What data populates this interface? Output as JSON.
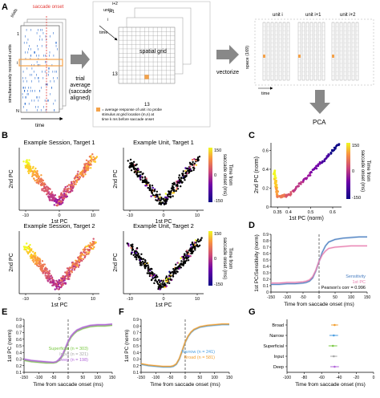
{
  "panels": {
    "A": {
      "letter": "A",
      "saccade_onset": "saccade\nonset",
      "trials_label": "trials",
      "units_label": "simultaneously recorded units",
      "time_label": "time",
      "unit_1": "1",
      "unit_i": "i",
      "unit_n": "N",
      "trial_average": "trial\naverage\n(saccade\naligned)",
      "units_stack": "units",
      "stack_i": "i",
      "stack_i1": "i+1",
      "stack_i2": "i+2",
      "stack_time": "time",
      "spatial_grid": "spatial grid",
      "grid_13_y": "13",
      "grid_13_x": "13",
      "legend_text": "= average response of unit i to probe\nstimulus at grid location (m,n) at\ntime k ms before saccade onset",
      "vectorize": "vectorize",
      "unit_col_i": "unit i",
      "unit_col_i1": "unit i+1",
      "unit_col_i2": "unit i+2",
      "space_label": "space (169)",
      "time_small": "time",
      "pca": "PCA"
    },
    "B": {
      "letter": "B",
      "titles": [
        "Example Session, Target 1",
        "Example Unit, Target 1",
        "Example Session, Target 2",
        "Example Unit, Target 2"
      ],
      "xlabel": "1st PC",
      "ylabel": "2nd PC",
      "x_ticks": [
        "-10",
        "0",
        "10"
      ],
      "colorbar_label": "Time from\nsaccade onset (ms)",
      "cb_top": "150",
      "cb_mid": "0",
      "cb_bot": "-150"
    },
    "C": {
      "letter": "C",
      "xlabel": "1st PC (norm)",
      "ylabel": "2nd PC (norm)",
      "x_ticks": [
        "0.35",
        "0.4",
        "0.5",
        "0.6"
      ],
      "y_ticks": [
        "0",
        "0.2",
        "0.4",
        "0.6"
      ],
      "colorbar_label": "Time from\nsaccade onset (ms)",
      "cb_top": "150",
      "cb_mid": "0",
      "cb_bot": "-150"
    },
    "D": {
      "letter": "D",
      "ylabel": "1st PC/Sensitivity (norm)",
      "xlabel": "Time from saccade onset (ms)",
      "x_ticks": [
        "-150",
        "-100",
        "-50",
        "0",
        "50",
        "100",
        "150"
      ],
      "y_ticks": [
        "0",
        "0.1",
        "0.2",
        "0.3",
        "0.4",
        "0.5",
        "0.6",
        "0.7",
        "0.8",
        "0.9"
      ],
      "legend": [
        "Sensitivity",
        "1st PC",
        "Pearson's corr = 0.996"
      ]
    },
    "E": {
      "letter": "E",
      "ylabel": "1st PC (norm)",
      "xlabel": "Time from saccade onset (ms)",
      "x_ticks": [
        "-150",
        "-100",
        "-50",
        "0",
        "50",
        "100",
        "150"
      ],
      "y_ticks": [
        "0.1",
        "0.2",
        "0.3",
        "0.4",
        "0.5",
        "0.6",
        "0.7",
        "0.8",
        "0.9"
      ],
      "legend": [
        "Superficial (n = 303)",
        "Input (n = 321)",
        "Deep (n = 198)"
      ]
    },
    "F": {
      "letter": "F",
      "ylabel": "1st PC (norm)",
      "xlabel": "Time from saccade onset (ms)",
      "x_ticks": [
        "-150",
        "-100",
        "-50",
        "0",
        "50",
        "100",
        "150"
      ],
      "y_ticks": [
        "0.1",
        "0.2",
        "0.3",
        "0.4",
        "0.5",
        "0.6",
        "0.7",
        "0.8",
        "0.9"
      ],
      "legend": [
        "Narrow (n = 241)",
        "Broad (n = 581)"
      ]
    },
    "G": {
      "letter": "G",
      "xlabel": "Time from saccade onset (ms)",
      "x_ticks": [
        "-100",
        "-80",
        "-60",
        "-40",
        "-20",
        "0"
      ],
      "categories": [
        "Broad",
        "Narrow",
        "Superficial",
        "Input",
        "Deep"
      ]
    }
  },
  "colors": {
    "orange_highlight": "#f4a24a",
    "sensitivity": "#4a7fc1",
    "first_pc": "#e87fb0",
    "superficial": "#7ac943",
    "input": "#a6a6a6",
    "deep": "#b266d9",
    "narrow": "#4a9ee0",
    "broad": "#f29e2e"
  },
  "chart_data": [
    {
      "type": "line",
      "panel": "D",
      "x": [
        -150,
        -125,
        -100,
        -75,
        -50,
        -40,
        -30,
        -20,
        -10,
        0,
        10,
        20,
        30,
        50,
        75,
        100,
        125,
        150
      ],
      "series": [
        {
          "name": "Sensitivity",
          "values": [
            0.12,
            0.12,
            0.13,
            0.13,
            0.14,
            0.15,
            0.17,
            0.22,
            0.33,
            0.48,
            0.62,
            0.72,
            0.78,
            0.82,
            0.84,
            0.85,
            0.86,
            0.86
          ]
        },
        {
          "name": "1st PC",
          "values": [
            0.14,
            0.14,
            0.15,
            0.15,
            0.16,
            0.17,
            0.19,
            0.24,
            0.34,
            0.48,
            0.58,
            0.64,
            0.68,
            0.7,
            0.71,
            0.72,
            0.72,
            0.72
          ]
        }
      ],
      "xlabel": "Time from saccade onset (ms)",
      "ylabel": "1st PC/Sensitivity (norm)",
      "xlim": [
        -150,
        150
      ],
      "ylim": [
        0,
        0.9
      ]
    },
    {
      "type": "line",
      "panel": "E",
      "x": [
        -150,
        -125,
        -100,
        -75,
        -50,
        -40,
        -30,
        -20,
        -10,
        0,
        10,
        20,
        30,
        50,
        75,
        100,
        125,
        150
      ],
      "series": [
        {
          "name": "Superficial (n = 303)",
          "values": [
            0.28,
            0.26,
            0.25,
            0.24,
            0.24,
            0.25,
            0.28,
            0.34,
            0.44,
            0.55,
            0.63,
            0.68,
            0.72,
            0.76,
            0.79,
            0.8,
            0.8,
            0.81
          ]
        },
        {
          "name": "Input (n = 321)",
          "values": [
            0.29,
            0.27,
            0.26,
            0.25,
            0.25,
            0.26,
            0.29,
            0.35,
            0.45,
            0.56,
            0.64,
            0.69,
            0.73,
            0.77,
            0.8,
            0.81,
            0.81,
            0.82
          ]
        },
        {
          "name": "Deep (n = 198)",
          "values": [
            0.3,
            0.28,
            0.27,
            0.26,
            0.25,
            0.26,
            0.3,
            0.36,
            0.46,
            0.57,
            0.65,
            0.7,
            0.74,
            0.78,
            0.81,
            0.82,
            0.82,
            0.83
          ]
        }
      ],
      "xlabel": "Time from saccade onset (ms)",
      "ylabel": "1st PC (norm)",
      "xlim": [
        -150,
        150
      ],
      "ylim": [
        0.1,
        0.9
      ]
    },
    {
      "type": "line",
      "panel": "F",
      "x": [
        -150,
        -125,
        -100,
        -75,
        -50,
        -40,
        -30,
        -20,
        -10,
        0,
        10,
        20,
        30,
        50,
        75,
        100,
        125,
        150
      ],
      "series": [
        {
          "name": "Narrow (n = 241)",
          "values": [
            0.22,
            0.2,
            0.19,
            0.18,
            0.18,
            0.19,
            0.22,
            0.3,
            0.42,
            0.55,
            0.64,
            0.7,
            0.74,
            0.78,
            0.8,
            0.81,
            0.82,
            0.82
          ]
        },
        {
          "name": "Broad (n = 581)",
          "values": [
            0.23,
            0.21,
            0.2,
            0.19,
            0.19,
            0.2,
            0.23,
            0.31,
            0.43,
            0.56,
            0.65,
            0.71,
            0.75,
            0.79,
            0.81,
            0.82,
            0.83,
            0.83
          ]
        }
      ],
      "xlabel": "Time from saccade onset (ms)",
      "ylabel": "1st PC (norm)",
      "xlim": [
        -150,
        150
      ],
      "ylim": [
        0.1,
        0.9
      ]
    },
    {
      "type": "scatter",
      "panel": "G",
      "categories": [
        "Broad",
        "Narrow",
        "Superficial",
        "Input",
        "Deep"
      ],
      "values": [
        -45,
        -46,
        -47,
        -46,
        -45
      ],
      "error": [
        4,
        5,
        5,
        4,
        5
      ],
      "xlabel": "Time from saccade onset (ms)",
      "xlim": [
        -100,
        0
      ]
    }
  ]
}
